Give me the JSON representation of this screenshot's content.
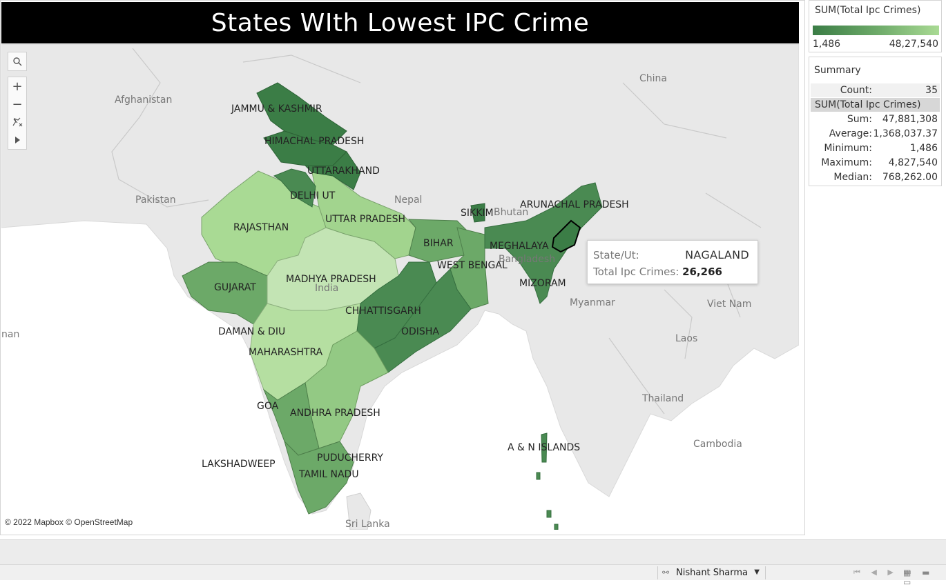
{
  "title": "States WIth Lowest IPC Crime",
  "map": {
    "attribution": "© 2022 Mapbox © OpenStreetMap",
    "country_labels": [
      "China",
      "Afghanistan",
      "Pakistan",
      "Nepal",
      "Bhutan",
      "Bangladesh",
      "Myanmar",
      "Viet Nam",
      "Laos",
      "Thailand",
      "Cambodia",
      "Sri Lanka",
      "nan",
      "India"
    ],
    "state_labels": [
      "JAMMU & KASHMIR",
      "HIMACHAL PRADESH",
      "UTTARAKHAND",
      "DELHI UT",
      "RAJASTHAN",
      "UTTAR PRADESH",
      "SIKKIM",
      "ARUNACHAL PRADESH",
      "MEGHALAYA",
      "BIHAR",
      "WEST BENGAL",
      "GUJARAT",
      "MADHYA PRADESH",
      "MIZORAM",
      "CHHATTISGARH",
      "ODISHA",
      "DAMAN & DIU",
      "MAHARASHTRA",
      "GOA",
      "ANDHRA PRADESH",
      "A & N ISLANDS",
      "LAKSHADWEEP",
      "PUDUCHERRY",
      "TAMIL NADU"
    ],
    "fill_colors": {
      "low": "#3b7d46",
      "mid": "#6ca968",
      "high": "#a9da94",
      "highest": "#c3e4b4"
    },
    "controls": {
      "search_icon": "search-icon",
      "zoom_in": "+",
      "zoom_out": "−",
      "pin_icon": "pin-icon",
      "expand_icon": "play-icon"
    }
  },
  "tooltip": {
    "state_key": "State/Ut:",
    "state_value": "NAGALAND",
    "crime_key": "Total Ipc Crimes:",
    "crime_value": "26,266"
  },
  "legend": {
    "title": "SUM(Total Ipc Crimes)",
    "min": "1,486",
    "max": "48,27,540",
    "color_low": "#3b7d46",
    "color_high": "#a9da94"
  },
  "summary": {
    "title": "Summary",
    "count_label": "Count:",
    "count_value": "35",
    "measure_label": "SUM(Total Ipc Crimes)",
    "rows": [
      {
        "label": "Sum:",
        "value": "47,881,308"
      },
      {
        "label": "Average:",
        "value": "1,368,037.37"
      },
      {
        "label": "Minimum:",
        "value": "1,486"
      },
      {
        "label": "Maximum:",
        "value": "4,827,540"
      },
      {
        "label": "Median:",
        "value": "768,262.00"
      }
    ]
  },
  "status_bar": {
    "user_name": "Nishant Sharma",
    "user_icon": "user-icon",
    "nav_icons": "⏮ ◀ ▶ ⏭",
    "view_icons": "▦ ▬ ▭"
  }
}
